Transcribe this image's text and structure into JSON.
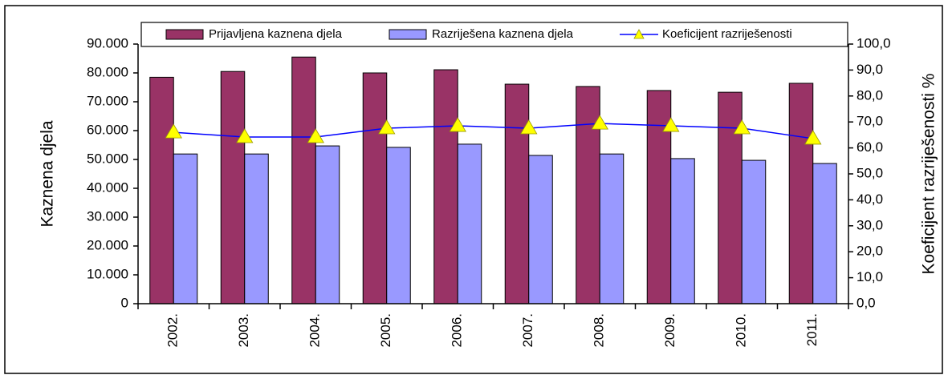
{
  "chart_data": {
    "type": "bar",
    "categories": [
      "2002.",
      "2003.",
      "2004.",
      "2005.",
      "2006.",
      "2007.",
      "2008.",
      "2009.",
      "2010.",
      "2011."
    ],
    "series": [
      {
        "name": "Prijavljena kaznena djela",
        "color": "#993366",
        "type": "bar",
        "values": [
          78500,
          80500,
          85500,
          80000,
          81100,
          76100,
          75300,
          73900,
          73300,
          76400
        ]
      },
      {
        "name": "Razriješena kaznena djela",
        "color": "#9999ff",
        "type": "bar",
        "values": [
          51900,
          51900,
          54700,
          54200,
          55300,
          51400,
          51900,
          50300,
          49700,
          48600
        ]
      },
      {
        "name": "Koeficijent razriješenosti",
        "color": "#0000ff",
        "marker_color": "#ffff00",
        "type": "line",
        "axis": "y2",
        "values": [
          66.0,
          64.2,
          64.2,
          67.6,
          68.5,
          67.6,
          69.4,
          68.5,
          67.6,
          63.6
        ]
      }
    ],
    "ylabel": "Kaznena djela",
    "y2label": "Koeficijent  razriješenosti  %",
    "ylim": [
      0,
      90000
    ],
    "yticks": [
      0,
      {
        "value": 10000,
        "label": "10.000"
      },
      {
        "value": 20000,
        "label": "20.000"
      },
      {
        "value": 30000,
        "label": "30.000"
      },
      {
        "value": 40000,
        "label": "40.000"
      },
      {
        "value": 50000,
        "label": "50.000"
      },
      {
        "value": 60000,
        "label": "60.000"
      },
      {
        "value": 70000,
        "label": "70.000"
      },
      {
        "value": 80000,
        "label": "80.000"
      },
      {
        "value": 90000,
        "label": "90.000"
      }
    ],
    "y2lim": [
      0,
      100
    ],
    "y2ticks": [
      {
        "value": 0,
        "label": "0,0"
      },
      {
        "value": 10,
        "label": "10,0"
      },
      {
        "value": 20,
        "label": "20,0"
      },
      {
        "value": 30,
        "label": "30,0"
      },
      {
        "value": 40,
        "label": "40,0"
      },
      {
        "value": 50,
        "label": "50,0"
      },
      {
        "value": 60,
        "label": "60,0"
      },
      {
        "value": 70,
        "label": "70,0"
      },
      {
        "value": 80,
        "label": "80,0"
      },
      {
        "value": 90,
        "label": "90,0"
      },
      {
        "value": 100,
        "label": "100,0"
      }
    ],
    "legend": "top",
    "grid": false
  }
}
